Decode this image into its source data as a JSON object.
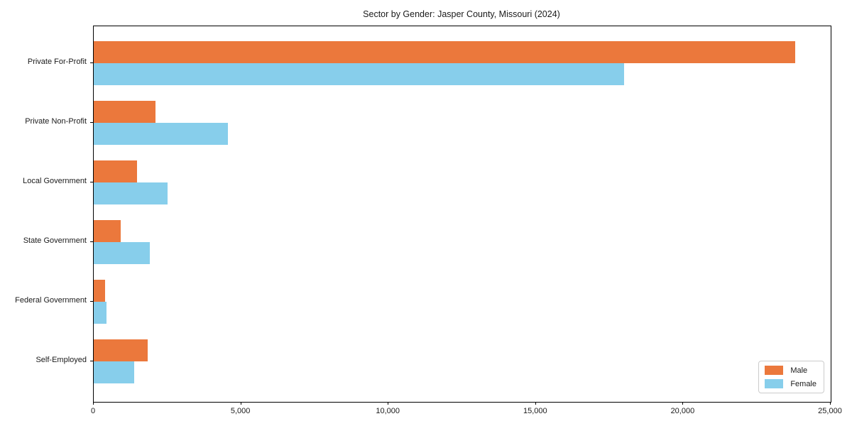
{
  "chart_data": {
    "type": "bar",
    "orientation": "horizontal",
    "title": "Sector by Gender: Jasper County, Missouri (2024)",
    "categories": [
      "Private For-Profit",
      "Private Non-Profit",
      "Local Government",
      "State Government",
      "Federal Government",
      "Self-Employed"
    ],
    "series": [
      {
        "name": "Male",
        "color": "#EB783C",
        "values": [
          23800,
          2100,
          1480,
          920,
          390,
          1830
        ]
      },
      {
        "name": "Female",
        "color": "#87CEEB",
        "values": [
          18000,
          4550,
          2500,
          1900,
          425,
          1380
        ]
      }
    ],
    "xlim": [
      0,
      25000
    ],
    "x_ticks": [
      {
        "value": 0,
        "label": "0"
      },
      {
        "value": 5000,
        "label": "5,000"
      },
      {
        "value": 10000,
        "label": "10,000"
      },
      {
        "value": 15000,
        "label": "15,000"
      },
      {
        "value": 20000,
        "label": "20,000"
      },
      {
        "value": 25000,
        "label": "25,000"
      }
    ],
    "xlabel": "",
    "ylabel": "",
    "grid": false,
    "legend_position": "lower right"
  },
  "colors": {
    "background": "#ffffff",
    "spine": "#000000",
    "legend_border": "#cccccc",
    "text": "#1a1a1a"
  }
}
